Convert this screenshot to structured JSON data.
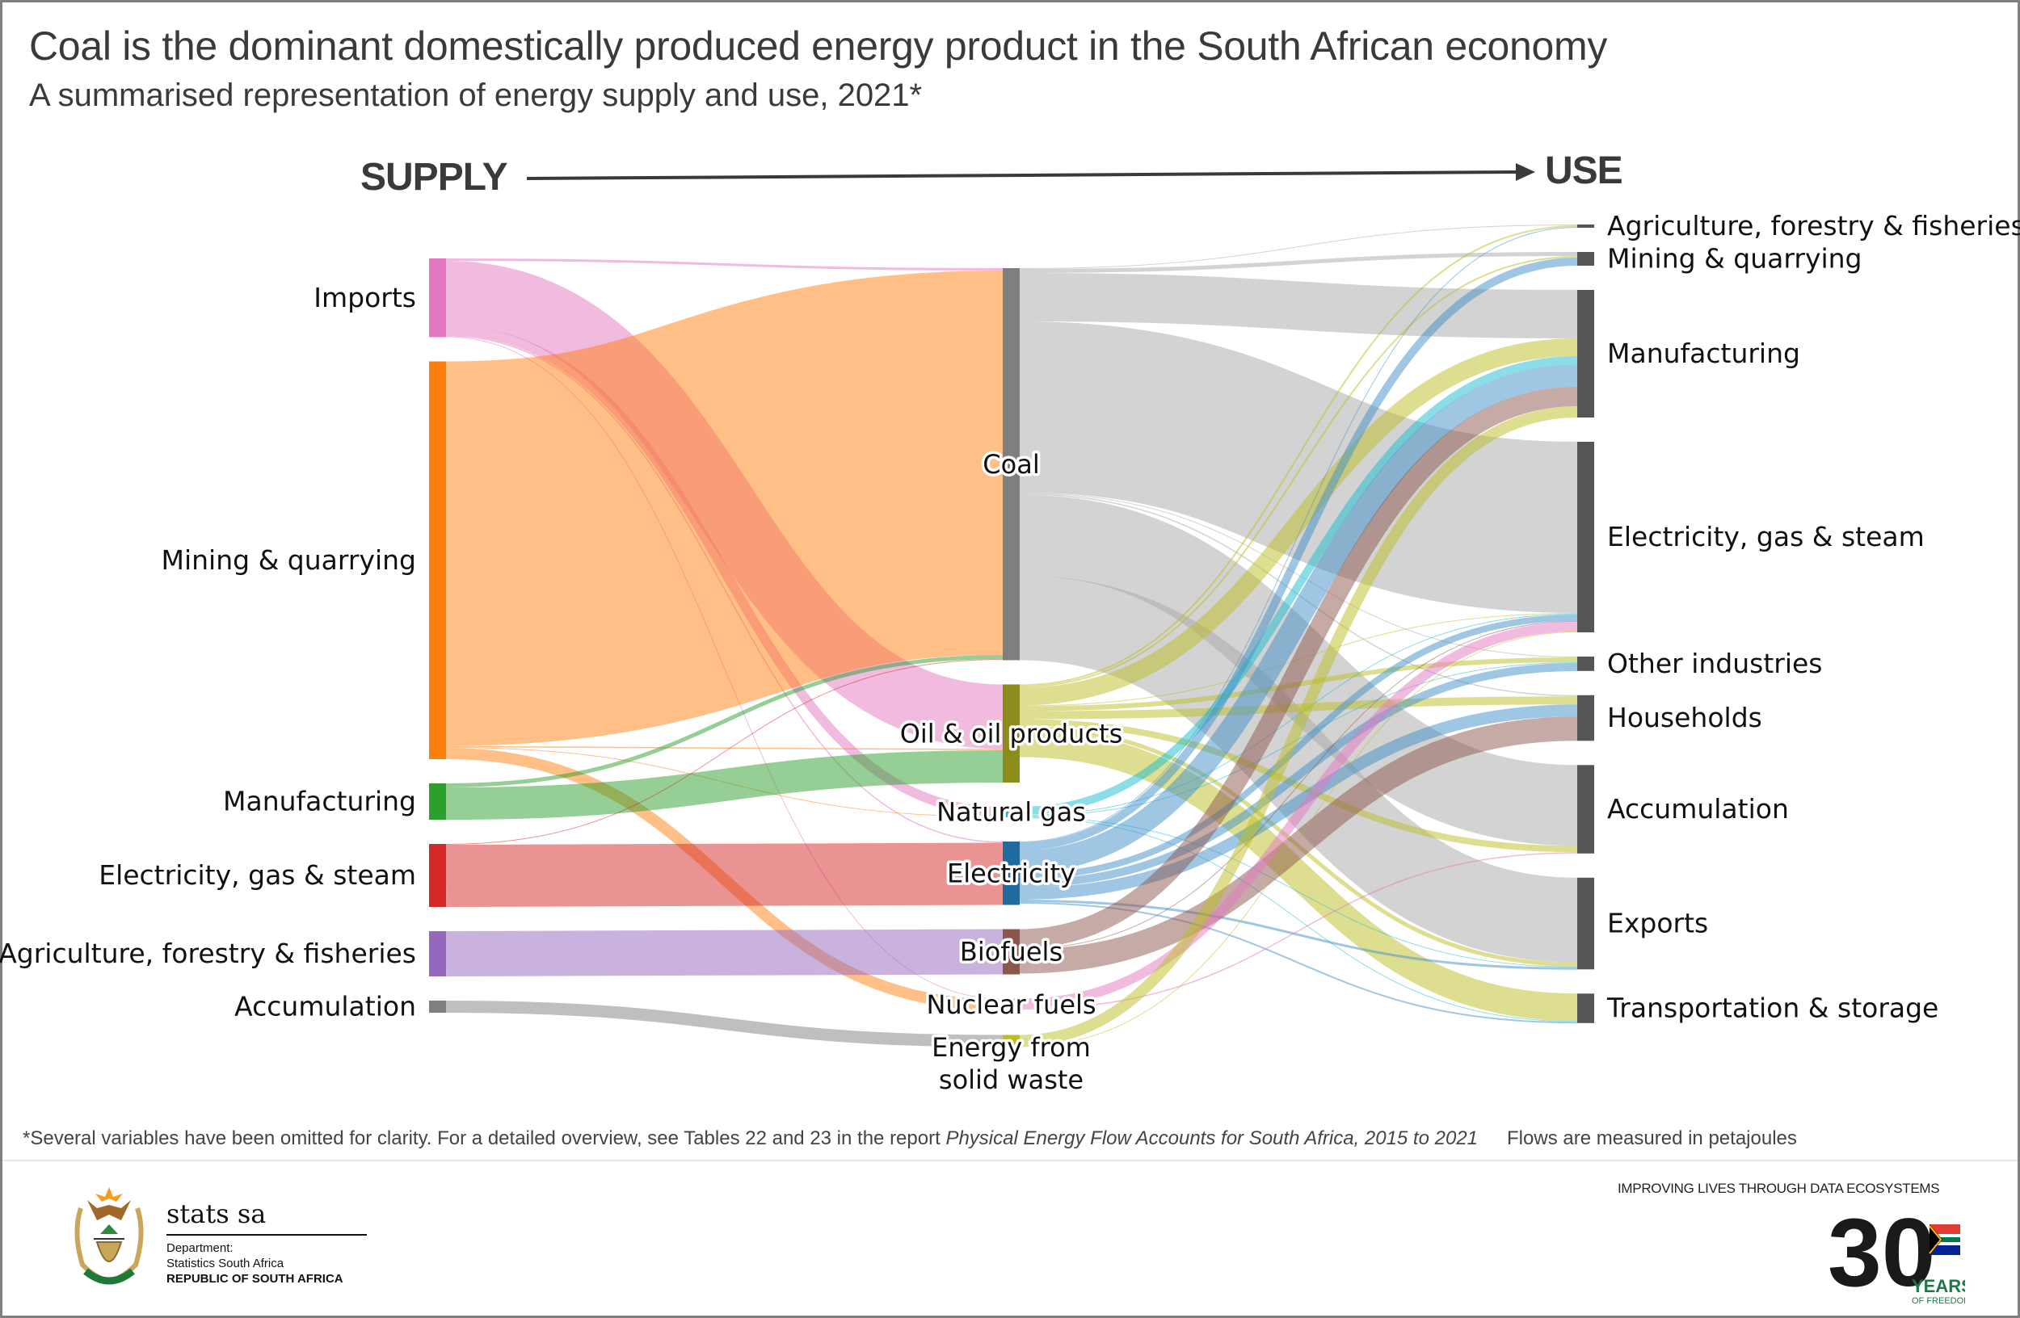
{
  "header": {
    "title": "Coal is the dominant domestically produced energy product in the South African economy",
    "subtitle": "A summarised representation of energy supply and use, 2021*",
    "supply_label": "SUPPLY",
    "use_label": "USE"
  },
  "chart_data": {
    "type": "sankey",
    "title": "Coal is the dominant domestically produced energy product in the South African economy",
    "subtitle": "A summarised representation of energy supply and use, 2021*",
    "units": "petajoules (relative, estimated from band widths; no values printed)",
    "columns": [
      {
        "name": "supply",
        "nodes": [
          {
            "id": "s_imports",
            "label": "Imports",
            "color": "#e377c2"
          },
          {
            "id": "s_mining",
            "label": "Mining & quarrying",
            "color": "#ff7f0e"
          },
          {
            "id": "s_manufacturing",
            "label": "Manufacturing",
            "color": "#2ca02c"
          },
          {
            "id": "s_electricity",
            "label": "Electricity, gas & steam",
            "color": "#d62728"
          },
          {
            "id": "s_agriculture",
            "label": "Agriculture, forestry & fisheries",
            "color": "#9467bd"
          },
          {
            "id": "s_accumulation",
            "label": "Accumulation",
            "color": "#7f7f7f"
          }
        ]
      },
      {
        "name": "product",
        "nodes": [
          {
            "id": "p_coal",
            "label": "Coal",
            "color": "#7f7f7f"
          },
          {
            "id": "p_oil",
            "label": "Oil & oil products",
            "color": "#8c8c1a"
          },
          {
            "id": "p_gas",
            "label": "Natural gas",
            "color": "#17becf"
          },
          {
            "id": "p_electricity",
            "label": "Electricity",
            "color": "#1f6b9e"
          },
          {
            "id": "p_biofuels",
            "label": "Biofuels",
            "color": "#8c564b"
          },
          {
            "id": "p_nuclear",
            "label": "Nuclear fuels",
            "color": "#e377c2"
          },
          {
            "id": "p_waste",
            "label": "Energy from solid waste",
            "label_lines": [
              "Energy from",
              "solid waste"
            ],
            "color": "#bcbd22"
          }
        ]
      },
      {
        "name": "use",
        "nodes": [
          {
            "id": "u_agriculture",
            "label": "Agriculture, forestry & fisheries",
            "color": "#555555"
          },
          {
            "id": "u_mining",
            "label": "Mining & quarrying",
            "color": "#555555"
          },
          {
            "id": "u_manufacturing",
            "label": "Manufacturing",
            "color": "#555555"
          },
          {
            "id": "u_electricity",
            "label": "Electricity, gas & steam",
            "color": "#555555"
          },
          {
            "id": "u_other",
            "label": "Other industries",
            "color": "#555555"
          },
          {
            "id": "u_households",
            "label": "Households",
            "color": "#555555"
          },
          {
            "id": "u_accumulation",
            "label": "Accumulation",
            "color": "#555555"
          },
          {
            "id": "u_exports",
            "label": "Exports",
            "color": "#555555"
          },
          {
            "id": "u_transport",
            "label": "Transportation & storage",
            "color": "#555555"
          }
        ]
      }
    ],
    "flows": [
      {
        "source": "s_imports",
        "target": "p_coal",
        "value": 3
      },
      {
        "source": "s_imports",
        "target": "p_oil",
        "value": 80
      },
      {
        "source": "s_imports",
        "target": "p_gas",
        "value": 12
      },
      {
        "source": "s_imports",
        "target": "p_electricity",
        "value": 1.5
      },
      {
        "source": "s_imports",
        "target": "p_nuclear",
        "value": 1
      },
      {
        "source": "s_mining",
        "target": "p_coal",
        "value": 476
      },
      {
        "source": "s_mining",
        "target": "p_oil",
        "value": 1.5
      },
      {
        "source": "s_mining",
        "target": "p_gas",
        "value": 1
      },
      {
        "source": "s_mining",
        "target": "p_nuclear",
        "value": 14
      },
      {
        "source": "s_manufacturing",
        "target": "p_coal",
        "value": 5
      },
      {
        "source": "s_manufacturing",
        "target": "p_oil",
        "value": 40
      },
      {
        "source": "s_electricity",
        "target": "p_coal",
        "value": 1
      },
      {
        "source": "s_electricity",
        "target": "p_electricity",
        "value": 77
      },
      {
        "source": "s_agriculture",
        "target": "p_biofuels",
        "value": 56
      },
      {
        "source": "s_accumulation",
        "target": "p_waste",
        "value": 15
      },
      {
        "source": "p_coal",
        "target": "u_agriculture",
        "value": 1
      },
      {
        "source": "p_coal",
        "target": "u_mining",
        "value": 5
      },
      {
        "source": "p_coal",
        "target": "u_manufacturing",
        "value": 60
      },
      {
        "source": "p_coal",
        "target": "u_electricity",
        "value": 212
      },
      {
        "source": "p_coal",
        "target": "u_other",
        "value": 1
      },
      {
        "source": "p_coal",
        "target": "u_households",
        "value": 1.5
      },
      {
        "source": "p_coal",
        "target": "u_accumulation",
        "value": 100
      },
      {
        "source": "p_coal",
        "target": "u_exports",
        "value": 105
      },
      {
        "source": "p_oil",
        "target": "u_agriculture",
        "value": 2
      },
      {
        "source": "p_oil",
        "target": "u_mining",
        "value": 2
      },
      {
        "source": "p_oil",
        "target": "u_manufacturing",
        "value": 22
      },
      {
        "source": "p_oil",
        "target": "u_electricity",
        "value": 1
      },
      {
        "source": "p_oil",
        "target": "u_other",
        "value": 6
      },
      {
        "source": "p_oil",
        "target": "u_households",
        "value": 10
      },
      {
        "source": "p_oil",
        "target": "u_accumulation",
        "value": 8
      },
      {
        "source": "p_oil",
        "target": "u_exports",
        "value": 5
      },
      {
        "source": "p_oil",
        "target": "u_transport",
        "value": 34
      },
      {
        "source": "p_gas",
        "target": "u_manufacturing",
        "value": 10
      },
      {
        "source": "p_gas",
        "target": "u_electricity",
        "value": 1
      },
      {
        "source": "p_gas",
        "target": "u_other",
        "value": 0.8
      },
      {
        "source": "p_gas",
        "target": "u_exports",
        "value": 0.5
      },
      {
        "source": "p_gas",
        "target": "u_transport",
        "value": 0.5
      },
      {
        "source": "p_electricity",
        "target": "u_agriculture",
        "value": 1
      },
      {
        "source": "p_electricity",
        "target": "u_mining",
        "value": 10
      },
      {
        "source": "p_electricity",
        "target": "u_manufacturing",
        "value": 28
      },
      {
        "source": "p_electricity",
        "target": "u_electricity",
        "value": 8
      },
      {
        "source": "p_electricity",
        "target": "u_other",
        "value": 10
      },
      {
        "source": "p_electricity",
        "target": "u_households",
        "value": 15
      },
      {
        "source": "p_electricity",
        "target": "u_exports",
        "value": 3
      },
      {
        "source": "p_electricity",
        "target": "u_transport",
        "value": 2
      },
      {
        "source": "p_biofuels",
        "target": "u_manufacturing",
        "value": 24
      },
      {
        "source": "p_biofuels",
        "target": "u_electricity",
        "value": 1
      },
      {
        "source": "p_biofuels",
        "target": "u_households",
        "value": 30
      },
      {
        "source": "p_nuclear",
        "target": "u_electricity",
        "value": 12
      },
      {
        "source": "p_nuclear",
        "target": "u_accumulation",
        "value": 1.5
      },
      {
        "source": "p_waste",
        "target": "u_manufacturing",
        "value": 14
      },
      {
        "source": "p_waste",
        "target": "u_electricity",
        "value": 1
      }
    ]
  },
  "footer": {
    "footnote_prefix": "*Several variables have been omitted for clarity. For a detailed overview, see Tables 22 and 23 in the report ",
    "footnote_report": "Physical Energy Flow Accounts for South Africa, 2015 to 2021",
    "units_note": "Flows are measured in petajoules",
    "org_name": "stats sa",
    "dept_line1": "Department:",
    "dept_line2": "Statistics South Africa",
    "dept_line3": "REPUBLIC OF SOUTH AFRICA",
    "tagline": "IMPROVING LIVES THROUGH DATA ECOSYSTEMS",
    "anniv_number": "30",
    "anniv_years": "YEARS",
    "anniv_freedom": "OF FREEDOM"
  }
}
